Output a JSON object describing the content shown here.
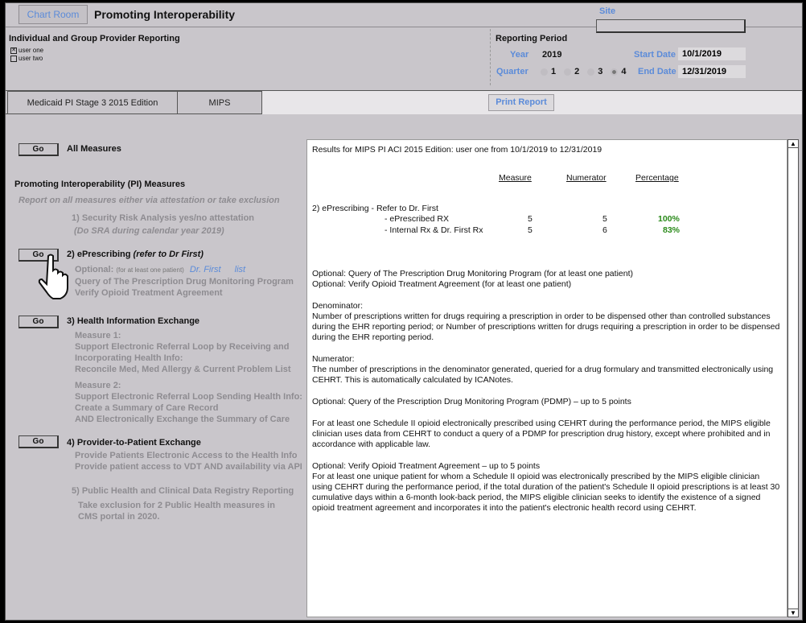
{
  "header": {
    "chart_room": "Chart Room",
    "title": "Promoting Interoperability",
    "site_label": "Site",
    "site_value": ""
  },
  "provider": {
    "heading": "Individual and Group Provider Reporting",
    "users": [
      {
        "label": "user one",
        "checked": true
      },
      {
        "label": "user two",
        "checked": false
      }
    ]
  },
  "period": {
    "heading": "Reporting Period",
    "year_label": "Year",
    "year": "2019",
    "quarter_label": "Quarter",
    "quarters": [
      "1",
      "2",
      "3",
      "4"
    ],
    "selected_quarter": "4",
    "start_label": "Start Date",
    "start": "10/1/2019",
    "end_label": "End Date",
    "end": "12/31/2019"
  },
  "tabs": [
    {
      "label": "Medicaid PI Stage 3 2015 Edition"
    },
    {
      "label": "MIPS",
      "active": true
    }
  ],
  "print_label": "Print Report",
  "left": {
    "go": "Go",
    "all_measures": "All Measures",
    "pi_heading": "Promoting Interoperability (PI) Measures",
    "pi_note": "Report on all measures either via attestation or take exclusion",
    "m1": [
      "1) Security Risk Analysis yes/no attestation",
      "(Do SRA during calendar year 2019)"
    ],
    "m2_title": "2) ePrescribing",
    "m2_note": "(refer to Dr First)",
    "m2_optional": "Optional:",
    "m2_small": "(for at least one patient)",
    "m2_link1": "Dr. First",
    "m2_link2": "list",
    "m2_lines": [
      "Query of The Prescription Drug Monitoring Program",
      "Verify Opioid Treatment Agreement"
    ],
    "m3_title": "3) Health Information Exchange",
    "m3_lines": [
      "Measure 1:",
      "Support Electronic Referral Loop by Receiving and",
      "Incorporating Health Info:",
      "Reconcile Med, Med Allergy & Current Problem List"
    ],
    "m3_lines2": [
      "Measure 2:",
      "Support Electronic Referral Loop Sending Health Info:",
      "Create a Summary of Care Record",
      "AND Electronically Exchange the Summary of Care"
    ],
    "m4_title": "4) Provider-to-Patient Exchange",
    "m4_lines": [
      "Provide Patients Electronic Access to the Health Info",
      "Provide patient access to VDT  AND availability via API"
    ],
    "m5_title": "5) Public Health and Clinical Data Registry Reporting",
    "m5_lines": [
      "Take exclusion for 2 Public Health measures in",
      "CMS portal in 2020."
    ]
  },
  "report": {
    "title": "Results for MIPS PI ACI  2015 Edition: user one  from 10/1/2019 to 12/31/2019",
    "col_measure": "Measure",
    "col_numerator": "Numerator",
    "col_percentage": "Percentage",
    "section": "2) ePrescribing - Refer to Dr. First",
    "rows": [
      {
        "label": "- ePrescribed RX",
        "measure": "5",
        "numerator": "5",
        "percentage": "100%"
      },
      {
        "label": "- Internal Rx & Dr. First Rx",
        "measure": "5",
        "numerator": "6",
        "percentage": "83%"
      }
    ],
    "opt1": "Optional: Query of The Prescription Drug Monitoring Program (for at least one patient)",
    "opt2": "Optional: Verify Opioid Treatment Agreement (for at least one patient)",
    "den_h": "Denominator:",
    "den": "Number of prescriptions written for drugs requiring a prescription in order to be dispensed other than controlled substances during the EHR reporting period; or Number of prescriptions written for drugs requiring a prescription in order to be dispensed during the EHR reporting period.",
    "num_h": "Numerator:",
    "num": "The number of prescriptions in the denominator generated, queried for a drug formulary and transmitted electronically using CEHRT. This is automatically calculated by ICANotes.",
    "pdmp_h": "Optional: Query of the Prescription Drug Monitoring Program (PDMP) – up to 5 points",
    "pdmp": "For at least one Schedule II opioid electronically prescribed using CEHRT during the performance period, the MIPS eligible clinician uses data from CEHRT to conduct a query of a PDMP for prescription drug history, except where prohibited and in accordance with applicable law.",
    "ota_h": "Optional: Verify Opioid Treatment Agreement – up to 5 points",
    "ota": " For at least one unique patient for whom a Schedule II opioid was electronically prescribed by the MIPS eligible clinician using CEHRT during the performance period, if the total duration of the patient's Schedule II opioid prescriptions is at least 30 cumulative days within a 6-month look-back period, the MIPS eligible clinician seeks to identify the existence of a signed opioid treatment agreement and incorporates it into the patient's electronic health record using CEHRT."
  },
  "colors": {
    "link": "#5b8bd9",
    "percent": "#2a8a1a",
    "background": "#c9c6cb"
  }
}
